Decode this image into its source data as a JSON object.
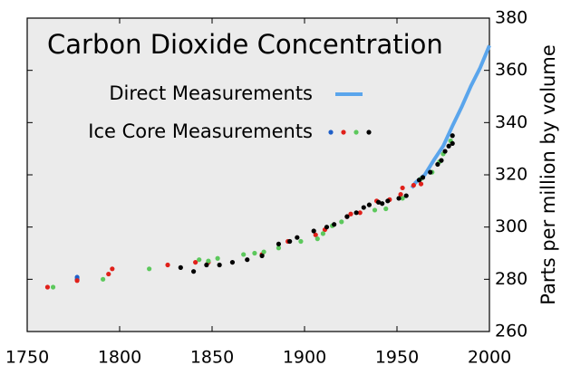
{
  "chart_data": {
    "type": "scatter",
    "title": "Carbon Dioxide Concentration",
    "y_label": "Parts per million by volume",
    "xlim": [
      1750,
      2000
    ],
    "xticks": [
      1750,
      1800,
      1850,
      1900,
      1950,
      2000
    ],
    "ylim": [
      260,
      380
    ],
    "yticks": [
      260,
      280,
      300,
      320,
      340,
      360,
      380
    ],
    "background": "#ebebeb",
    "series": [
      {
        "name": "Direct Measurements",
        "style": "line",
        "color": "#5aa5ec",
        "x": [
          1958,
          1960,
          1965,
          1970,
          1975,
          1980,
          1985,
          1990,
          1995,
          2000
        ],
        "values": [
          315,
          317,
          320,
          325.7,
          331,
          338.7,
          346,
          354,
          361,
          369.5
        ]
      },
      {
        "name": "Ice Core Measurements",
        "style": "points",
        "groups": [
          {
            "color": "#1f5fc8",
            "x": [
              1777,
              1777
            ],
            "values": [
              280,
              280.8
            ]
          },
          {
            "color": "#e0201a",
            "x": [
              1761,
              1777,
              1794,
              1796,
              1826,
              1841,
              1848,
              1877,
              1891,
              1906,
              1911,
              1923,
              1925,
              1930,
              1939,
              1946,
              1952,
              1953,
              1959,
              1963
            ],
            "values": [
              277,
              279.5,
              282,
              284,
              285.5,
              286.5,
              286.5,
              289.5,
              294.5,
              297,
              299,
              304,
              305,
              305.5,
              310,
              310.5,
              312.5,
              315,
              316,
              316.5
            ]
          },
          {
            "color": "#5cc85c",
            "x": [
              1764,
              1791,
              1816,
              1843,
              1848,
              1853,
              1867,
              1873,
              1878,
              1886,
              1898,
              1907,
              1910,
              1915,
              1920,
              1938,
              1944,
              1953,
              1963,
              1969,
              1973,
              1975,
              1979
            ],
            "values": [
              277,
              280,
              284,
              287.5,
              287,
              288,
              289.5,
              290,
              290.5,
              292,
              294.5,
              295.5,
              297.5,
              300.5,
              302,
              306.5,
              307,
              311,
              318.5,
              321,
              325,
              328,
              333
            ]
          },
          {
            "color": "#000000",
            "x": [
              1833,
              1840,
              1847,
              1854,
              1861,
              1869,
              1877,
              1886,
              1892,
              1896,
              1905,
              1912,
              1916,
              1923,
              1928,
              1932,
              1935,
              1940,
              1942,
              1945,
              1951,
              1955,
              1962,
              1964,
              1968,
              1972,
              1974,
              1976,
              1978,
              1980,
              1980
            ],
            "values": [
              284.5,
              283,
              285.5,
              285.5,
              286.5,
              287.5,
              289,
              293.5,
              294.5,
              296,
              298.5,
              300,
              301,
              304,
              305.5,
              307.5,
              308.5,
              309.5,
              309,
              310,
              311,
              312,
              318,
              319,
              321,
              324,
              325.5,
              329,
              331,
              332,
              335
            ]
          }
        ]
      }
    ]
  }
}
